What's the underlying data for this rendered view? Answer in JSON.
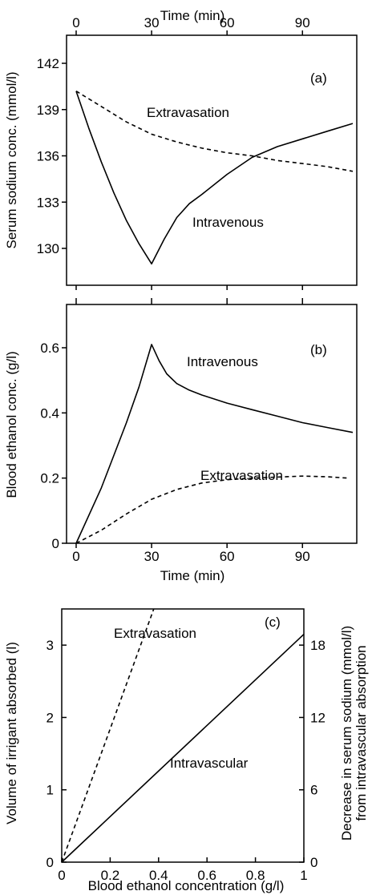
{
  "chart_data": [
    {
      "panel": "(a)",
      "type": "line",
      "xlabel_top": "Time (min)",
      "ylabel": "Serum sodium conc. (mmol/l)",
      "xticks": [
        0,
        30,
        60,
        90
      ],
      "yticks": [
        130,
        133,
        136,
        139,
        142
      ],
      "xlim": [
        0,
        110
      ],
      "ylim": [
        127.5,
        142.5
      ],
      "grid": false,
      "series": [
        {
          "name": "Extravasation",
          "style": "dashed",
          "x": [
            0,
            10,
            20,
            30,
            40,
            50,
            60,
            70,
            80,
            90,
            100,
            110
          ],
          "y": [
            140.2,
            139.2,
            138.2,
            137.4,
            136.9,
            136.5,
            136.2,
            136.0,
            135.7,
            135.5,
            135.3,
            135.0
          ]
        },
        {
          "name": "Intravenous",
          "style": "solid",
          "x": [
            0,
            5,
            10,
            15,
            20,
            25,
            30,
            35,
            40,
            45,
            50,
            60,
            70,
            80,
            90,
            100,
            110
          ],
          "y": [
            140.2,
            137.8,
            135.6,
            133.6,
            131.8,
            130.3,
            129.0,
            130.6,
            132.0,
            132.9,
            133.5,
            134.8,
            135.9,
            136.6,
            137.1,
            137.6,
            138.1
          ]
        }
      ],
      "annotations": [
        "Extravasation",
        "Intravenous"
      ]
    },
    {
      "panel": "(b)",
      "type": "line",
      "xlabel": "Time (min)",
      "ylabel": "Blood ethanol conc. (g/l)",
      "xticks": [
        0,
        30,
        60,
        90
      ],
      "ytick_labels": [
        "0",
        "0.2",
        "0.4",
        "0.6"
      ],
      "yticks": [
        0,
        0.2,
        0.4,
        0.6
      ],
      "xlim": [
        -3,
        110
      ],
      "ylim": [
        0,
        0.7
      ],
      "grid": false,
      "series": [
        {
          "name": "Intravenous",
          "style": "solid",
          "x": [
            0,
            10,
            20,
            25,
            30,
            33,
            36,
            40,
            45,
            50,
            60,
            70,
            80,
            90,
            100,
            110
          ],
          "y": [
            0,
            0.17,
            0.37,
            0.48,
            0.61,
            0.56,
            0.52,
            0.49,
            0.47,
            0.455,
            0.43,
            0.41,
            0.39,
            0.37,
            0.355,
            0.34
          ]
        },
        {
          "name": "Extravasation",
          "style": "dashed",
          "x": [
            0,
            5,
            10,
            20,
            30,
            40,
            50,
            60,
            70,
            80,
            90,
            100,
            108
          ],
          "y": [
            0,
            0.02,
            0.04,
            0.09,
            0.135,
            0.165,
            0.185,
            0.195,
            0.2,
            0.203,
            0.206,
            0.204,
            0.2
          ]
        }
      ],
      "annotations": [
        "Intravenous",
        "Extravasation"
      ]
    },
    {
      "panel": "(c)",
      "type": "line",
      "xlabel": "Blood ethanol concentration (g/l)",
      "ylabel": "Volume of irrigant absorbed (l)",
      "ylabel_right_line1": "Decrease in serum sodium (mmol/l)",
      "ylabel_right_line2": "from intravascular absorption",
      "xtick_labels": [
        "0",
        "0.2",
        "0.4",
        "0.6",
        "0.8",
        "1"
      ],
      "xticks": [
        0,
        0.2,
        0.4,
        0.6,
        0.8,
        1.0
      ],
      "yticks": [
        0,
        1,
        2,
        3
      ],
      "yticks_right": [
        0,
        6,
        12,
        18
      ],
      "xlim": [
        0,
        1
      ],
      "ylim": [
        0,
        3.5
      ],
      "ylim_right": [
        0,
        21
      ],
      "grid": false,
      "series": [
        {
          "name": "Extravasation",
          "style": "dashed",
          "x": [
            0,
            0.38
          ],
          "y": [
            0,
            3.5
          ]
        },
        {
          "name": "Intravascular",
          "style": "solid",
          "x": [
            0,
            1
          ],
          "y": [
            0,
            3.15
          ]
        }
      ],
      "annotations": [
        "Extravasation",
        "Intravascular"
      ]
    }
  ]
}
